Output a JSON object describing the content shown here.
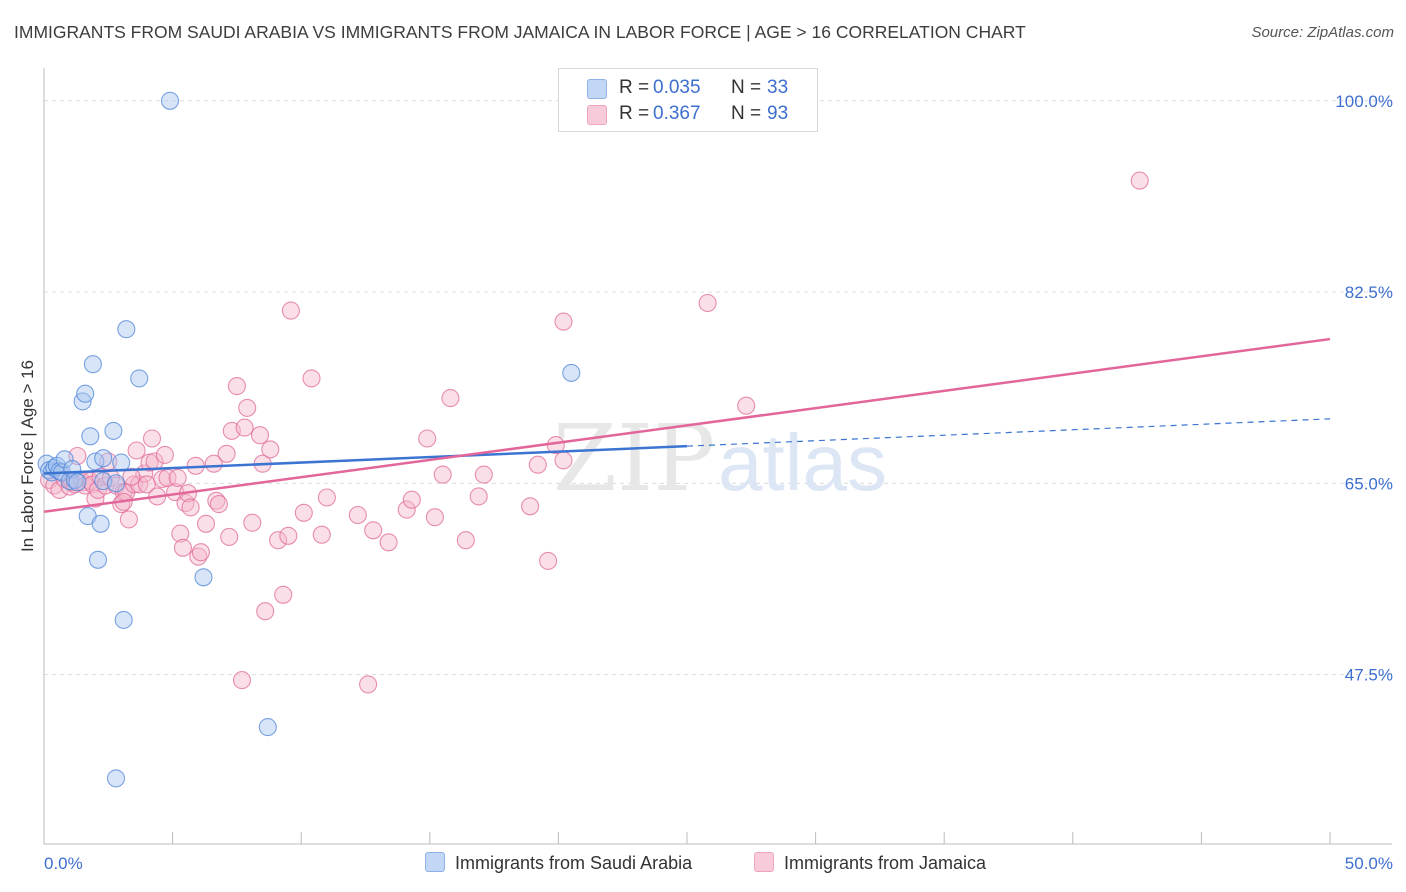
{
  "title": "IMMIGRANTS FROM SAUDI ARABIA VS IMMIGRANTS FROM JAMAICA IN LABOR FORCE | AGE > 16 CORRELATION CHART",
  "source": "Source: ZipAtlas.com",
  "watermark": {
    "zip": "ZIP",
    "atlas": "atlas"
  },
  "legend": {
    "r_label": "R =",
    "n_label": "N =",
    "series": [
      {
        "r": "0.035",
        "n": "33",
        "color": "#a9c6f0"
      },
      {
        "r": "0.367",
        "n": "93",
        "color": "#f5b8cc"
      }
    ]
  },
  "chart_data": {
    "type": "scatter",
    "title": "IMMIGRANTS FROM SAUDI ARABIA VS IMMIGRANTS FROM JAMAICA IN LABOR FORCE | AGE > 16 CORRELATION CHART",
    "xlabel": "",
    "ylabel": "In Labor Force | Age > 16",
    "xlim": [
      0,
      50
    ],
    "ylim": [
      32,
      103
    ],
    "x_tick_labels": [
      "0.0%",
      "50.0%"
    ],
    "y_ticks": [
      47.5,
      65.0,
      82.5,
      100.0
    ],
    "y_tick_labels": [
      "47.5%",
      "65.0%",
      "82.5%",
      "100.0%"
    ],
    "series": [
      {
        "name": "Immigrants from Saudi Arabia",
        "color": "#4f86d8",
        "fill": "#a9c6f0",
        "trend": {
          "x0": 0,
          "y0": 65.9,
          "x1": 25,
          "y1": 68.4,
          "x_end": 50,
          "y_end": 70.9
        },
        "points": [
          [
            0.1,
            66.8
          ],
          [
            0.2,
            66.2
          ],
          [
            0.3,
            66.0
          ],
          [
            0.4,
            66.4
          ],
          [
            0.5,
            66.6
          ],
          [
            0.6,
            66.1
          ],
          [
            0.7,
            66.0
          ],
          [
            0.8,
            67.2
          ],
          [
            1.0,
            65.2
          ],
          [
            1.1,
            66.3
          ],
          [
            1.2,
            65.3
          ],
          [
            1.3,
            65.1
          ],
          [
            1.5,
            72.5
          ],
          [
            1.6,
            73.2
          ],
          [
            1.7,
            62.0
          ],
          [
            1.8,
            69.3
          ],
          [
            1.9,
            75.9
          ],
          [
            2.0,
            67.0
          ],
          [
            2.1,
            58.0
          ],
          [
            2.2,
            61.3
          ],
          [
            2.3,
            65.2
          ],
          [
            2.3,
            67.3
          ],
          [
            2.7,
            69.8
          ],
          [
            2.8,
            65.0
          ],
          [
            3.0,
            66.9
          ],
          [
            3.1,
            52.5
          ],
          [
            3.2,
            79.1
          ],
          [
            3.7,
            74.6
          ],
          [
            4.9,
            100.0
          ],
          [
            6.2,
            56.4
          ],
          [
            8.7,
            42.7
          ],
          [
            2.8,
            38.0
          ],
          [
            20.5,
            75.1
          ]
        ]
      },
      {
        "name": "Immigrants from Jamaica",
        "color": "#e06a98",
        "fill": "#f5b8cc",
        "trend": {
          "x0": 0,
          "y0": 62.4,
          "x1": 50,
          "y1": 78.2
        },
        "points": [
          [
            0.2,
            65.3
          ],
          [
            0.4,
            64.8
          ],
          [
            0.6,
            64.4
          ],
          [
            0.8,
            65.4
          ],
          [
            1.0,
            64.7
          ],
          [
            1.1,
            65.1
          ],
          [
            1.2,
            64.9
          ],
          [
            1.3,
            67.5
          ],
          [
            1.5,
            65.1
          ],
          [
            1.6,
            64.8
          ],
          [
            1.8,
            65.2
          ],
          [
            1.9,
            64.9
          ],
          [
            2.0,
            63.6
          ],
          [
            2.1,
            64.4
          ],
          [
            2.2,
            65.6
          ],
          [
            2.4,
            64.8
          ],
          [
            2.6,
            65.5
          ],
          [
            2.8,
            64.8
          ],
          [
            3.0,
            63.1
          ],
          [
            3.1,
            64.2
          ],
          [
            3.2,
            64.2
          ],
          [
            3.3,
            61.7
          ],
          [
            3.5,
            64.9
          ],
          [
            3.6,
            68.0
          ],
          [
            3.7,
            64.9
          ],
          [
            3.9,
            65.9
          ],
          [
            4.0,
            64.9
          ],
          [
            4.1,
            66.9
          ],
          [
            4.2,
            69.1
          ],
          [
            4.3,
            67.0
          ],
          [
            4.4,
            63.8
          ],
          [
            4.6,
            65.4
          ],
          [
            4.7,
            67.6
          ],
          [
            4.8,
            65.5
          ],
          [
            5.1,
            64.2
          ],
          [
            5.2,
            65.5
          ],
          [
            5.3,
            60.4
          ],
          [
            5.4,
            59.1
          ],
          [
            5.5,
            63.2
          ],
          [
            5.6,
            64.1
          ],
          [
            5.7,
            62.8
          ],
          [
            5.9,
            66.6
          ],
          [
            6.0,
            58.3
          ],
          [
            6.1,
            58.7
          ],
          [
            6.3,
            61.3
          ],
          [
            6.6,
            66.8
          ],
          [
            6.7,
            63.4
          ],
          [
            6.8,
            63.1
          ],
          [
            7.1,
            67.7
          ],
          [
            7.2,
            60.1
          ],
          [
            7.3,
            69.8
          ],
          [
            7.5,
            73.9
          ],
          [
            7.7,
            47.0
          ],
          [
            7.8,
            70.1
          ],
          [
            7.9,
            71.9
          ],
          [
            8.1,
            61.4
          ],
          [
            8.4,
            69.4
          ],
          [
            8.5,
            66.8
          ],
          [
            8.6,
            53.3
          ],
          [
            8.8,
            68.1
          ],
          [
            9.1,
            59.8
          ],
          [
            9.3,
            54.8
          ],
          [
            9.5,
            60.2
          ],
          [
            9.6,
            80.8
          ],
          [
            10.1,
            62.3
          ],
          [
            10.4,
            74.6
          ],
          [
            10.8,
            60.3
          ],
          [
            11.0,
            63.7
          ],
          [
            12.2,
            62.1
          ],
          [
            12.6,
            46.6
          ],
          [
            12.8,
            60.7
          ],
          [
            13.4,
            59.6
          ],
          [
            14.1,
            62.6
          ],
          [
            14.3,
            63.5
          ],
          [
            14.9,
            69.1
          ],
          [
            15.2,
            61.9
          ],
          [
            15.5,
            65.8
          ],
          [
            15.8,
            72.8
          ],
          [
            16.4,
            59.8
          ],
          [
            16.9,
            63.8
          ],
          [
            17.1,
            65.8
          ],
          [
            18.9,
            62.9
          ],
          [
            19.2,
            66.7
          ],
          [
            19.6,
            57.9
          ],
          [
            19.9,
            68.5
          ],
          [
            20.2,
            67.1
          ],
          [
            20.2,
            79.8
          ],
          [
            25.8,
            81.5
          ],
          [
            27.3,
            72.1
          ],
          [
            42.6,
            92.7
          ],
          [
            3.1,
            63.3
          ],
          [
            2.5,
            67.0
          ],
          [
            3.4,
            65.6
          ]
        ]
      }
    ]
  }
}
